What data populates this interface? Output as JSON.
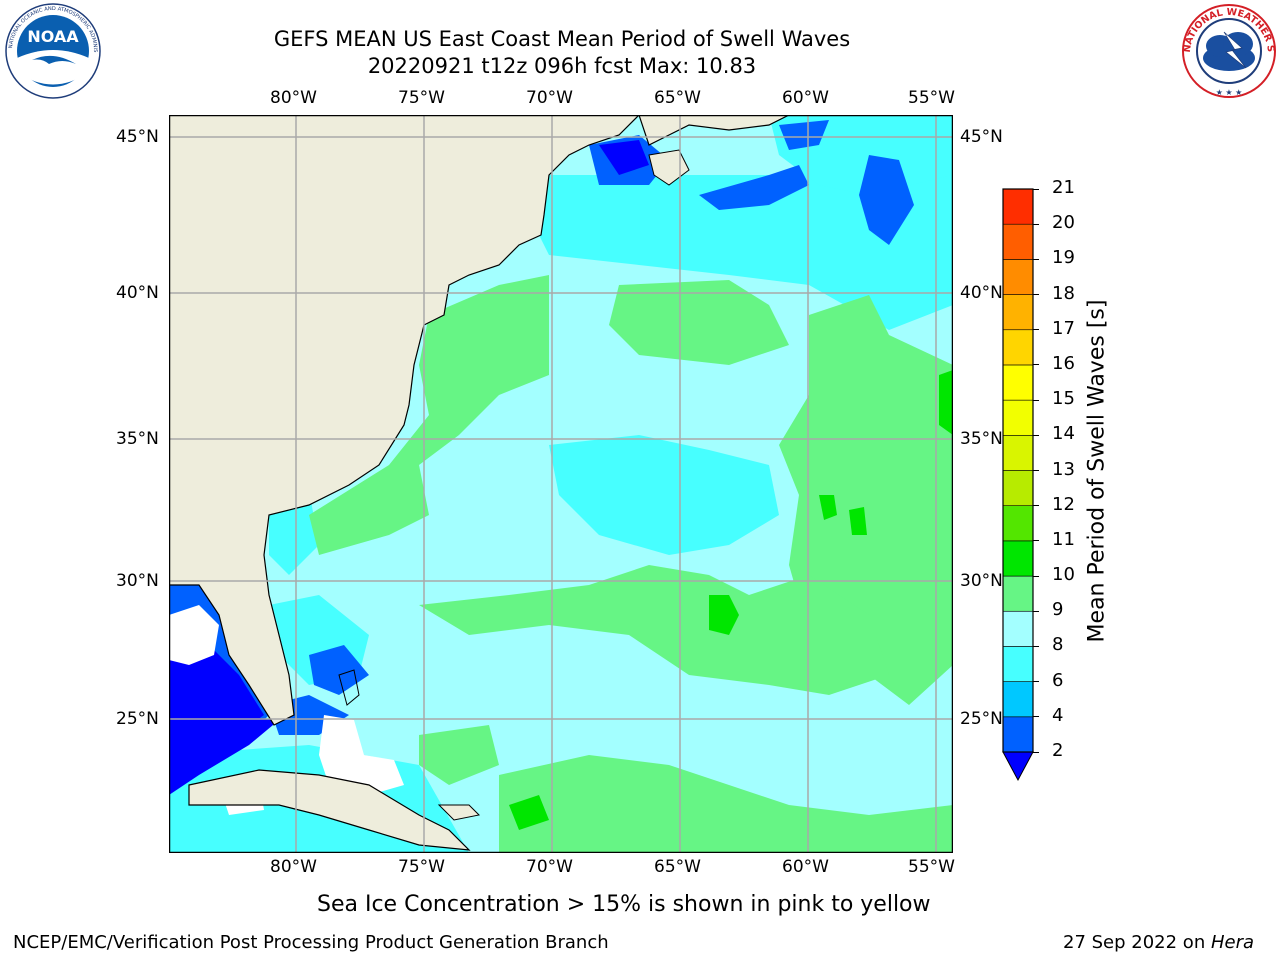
{
  "header": {
    "title_line1": "GEFS MEAN US East Coast Mean Period of Swell Waves",
    "title_line2": "20220921 t12z 096h fcst   Max: 10.83"
  },
  "logos": {
    "left": {
      "text": "NOAA",
      "ring_text": "NATIONAL OCEANIC AND ATMOSPHERIC ADMINISTRATION · U.S. DEPARTMENT OF COMMERCE"
    },
    "right": {
      "ring_text": "NATIONAL WEATHER SERVICE"
    }
  },
  "map": {
    "lon_labels": [
      "80°W",
      "75°W",
      "70°W",
      "65°W",
      "60°W",
      "55°W"
    ],
    "lat_labels": [
      "45°N",
      "40°N",
      "35°N",
      "30°N",
      "25°N"
    ],
    "colors": {
      "land": "#eeeddc",
      "frame": "#000000",
      "grid": "#a9a9a9",
      "ice_free_white": "#ffffff"
    }
  },
  "colorbar": {
    "label": "Mean Period of Swell Waves [s]",
    "ticks": [
      "2",
      "4",
      "6",
      "8",
      "9",
      "10",
      "11",
      "12",
      "13",
      "14",
      "15",
      "16",
      "17",
      "18",
      "19",
      "20",
      "21"
    ],
    "colors": [
      "#0061ff",
      "#00c8ff",
      "#47ffff",
      "#a3ffff",
      "#66f585",
      "#00e600",
      "#53e600",
      "#b7eb00",
      "#d9f500",
      "#f2ff00",
      "#ffff00",
      "#ffd500",
      "#ffb200",
      "#ff8c00",
      "#ff5e00",
      "#ff2e00"
    ],
    "under_color": "#0000ff"
  },
  "note": "Sea Ice Concentration > 15% is shown in pink to yellow",
  "footer": {
    "left": "NCEP/EMC/Verification Post Processing Product Generation Branch",
    "right_date": "27 Sep 2022 on ",
    "right_machine": "Hera"
  }
}
